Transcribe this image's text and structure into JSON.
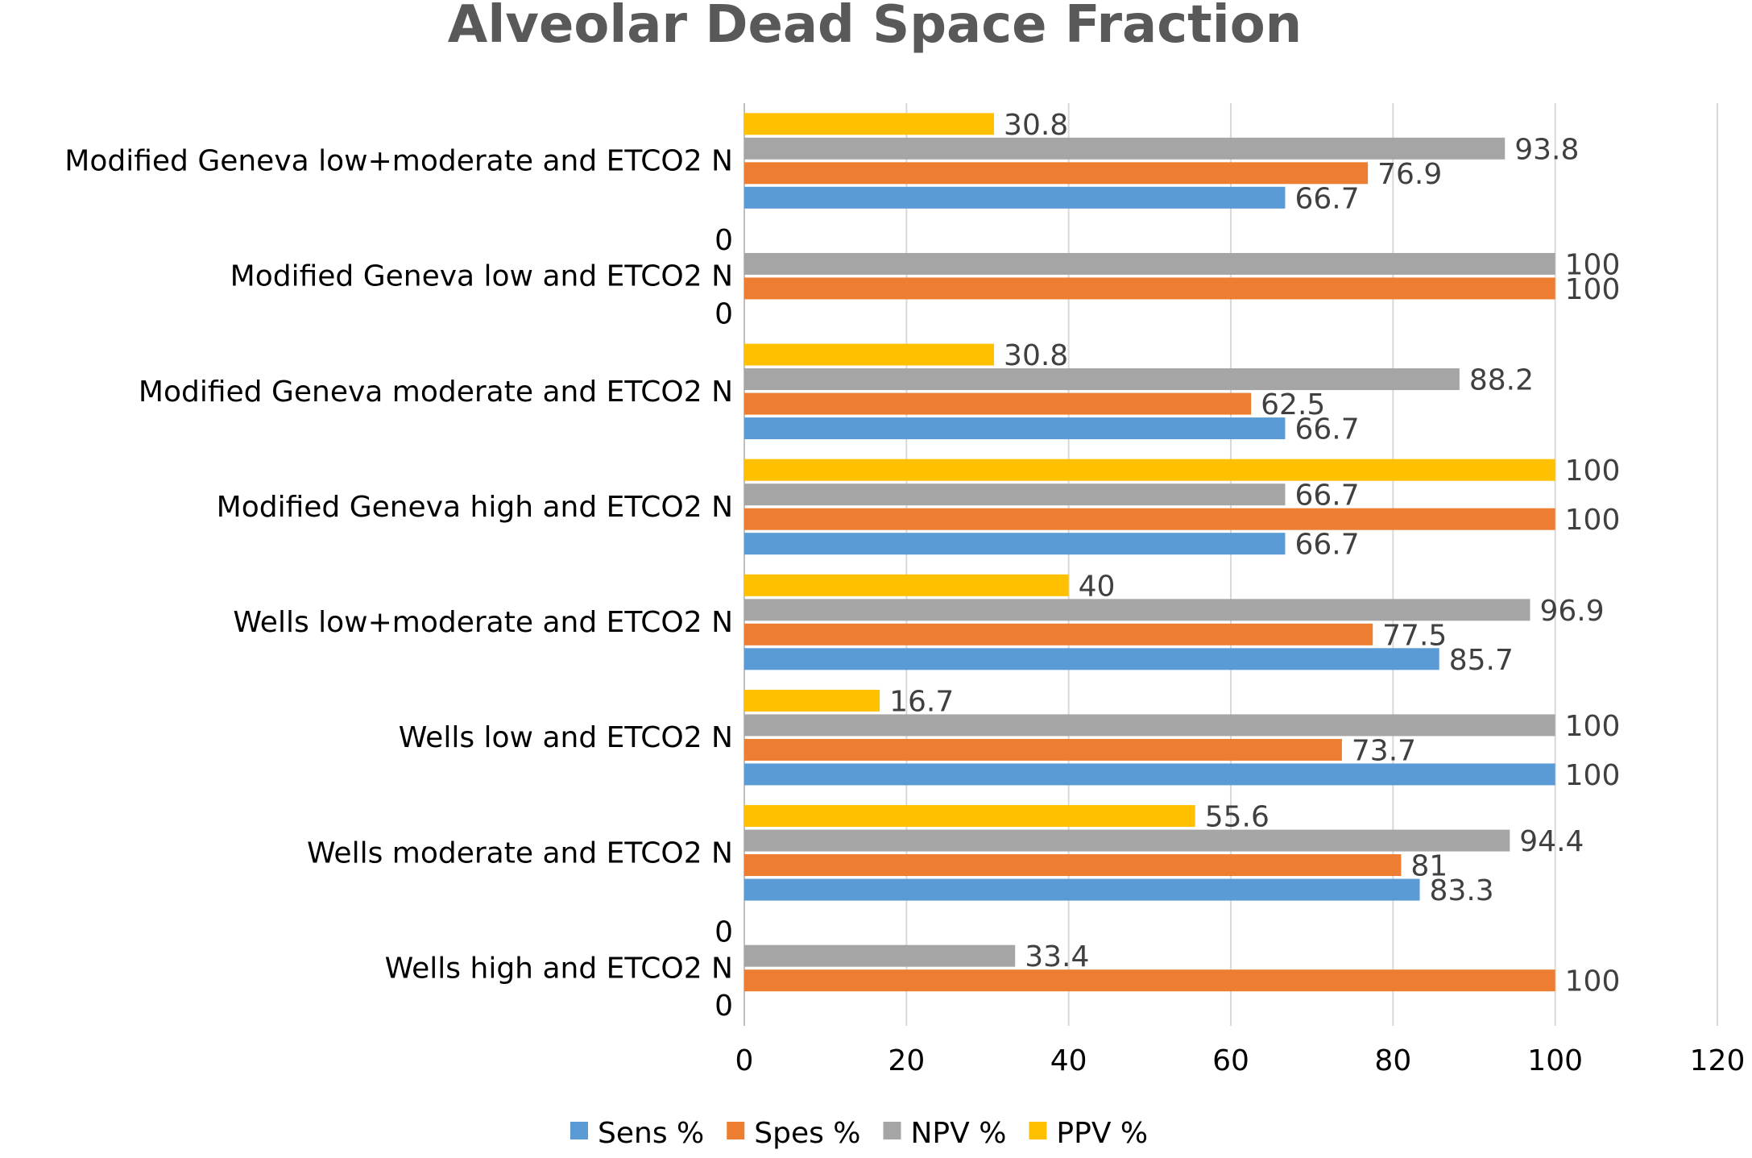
{
  "chart_data": {
    "type": "bar",
    "orientation": "horizontal",
    "title": "Alveolar Dead Space Fraction",
    "xlabel": "",
    "ylabel": "",
    "xlim": [
      0,
      120
    ],
    "x_ticks": [
      0,
      20,
      40,
      60,
      80,
      100,
      120
    ],
    "grid": true,
    "legend_position": "bottom",
    "categories": [
      "Modified Geneva  low+moderate and ETCO2 N",
      "Modified Geneva  low and ETCO2 N",
      "Modified Geneva  moderate and  ETCO2 N",
      "Modified Geneva  high and ETCO2 N",
      "Wells low+moderate and ETCO2 N",
      "Wells low and ETCO2 N",
      "Wells  moderate and ETCO2 N",
      "Wells  high  and ETCO2 N"
    ],
    "series": [
      {
        "name": "Sens %",
        "color": "#5B9BD5",
        "values": [
          66.7,
          0,
          66.7,
          66.7,
          85.7,
          100,
          83.3,
          0
        ]
      },
      {
        "name": "Spes %",
        "color": "#ED7D31",
        "values": [
          76.9,
          100,
          62.5,
          100,
          77.5,
          73.7,
          81,
          100
        ]
      },
      {
        "name": "NPV %",
        "color": "#A5A5A5",
        "values": [
          93.8,
          100,
          88.2,
          66.7,
          96.9,
          100,
          94.4,
          33.4
        ]
      },
      {
        "name": "PPV %",
        "color": "#FFC000",
        "values": [
          30.8,
          0,
          30.8,
          100,
          40,
          16.7,
          55.6,
          0
        ]
      }
    ]
  }
}
